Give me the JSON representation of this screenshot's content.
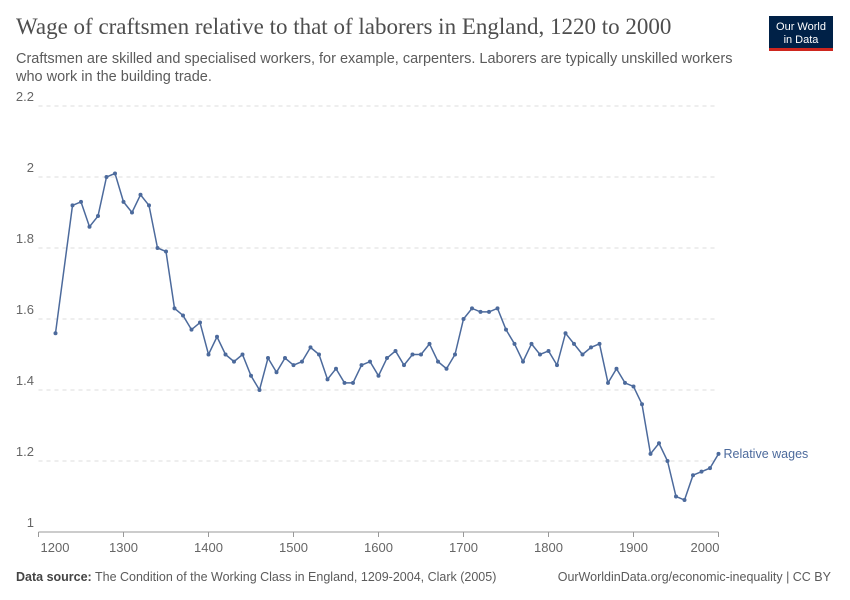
{
  "chart_data": {
    "type": "line",
    "title": "Wage of craftsmen relative to that of laborers in England, 1220 to 2000",
    "subtitle": [
      "Craftsmen are skilled and specialised workers, for example, carpenters. Laborers are typically unskilled workers",
      "who work in the building trade."
    ],
    "x": [
      1220,
      1240,
      1250,
      1260,
      1270,
      1280,
      1290,
      1300,
      1310,
      1320,
      1330,
      1340,
      1350,
      1360,
      1370,
      1380,
      1390,
      1400,
      1410,
      1420,
      1430,
      1440,
      1450,
      1460,
      1470,
      1480,
      1490,
      1500,
      1510,
      1520,
      1530,
      1540,
      1550,
      1560,
      1570,
      1580,
      1590,
      1600,
      1610,
      1620,
      1630,
      1640,
      1650,
      1660,
      1670,
      1680,
      1690,
      1700,
      1710,
      1720,
      1730,
      1740,
      1750,
      1760,
      1770,
      1780,
      1790,
      1800,
      1810,
      1820,
      1830,
      1840,
      1850,
      1860,
      1870,
      1880,
      1890,
      1900,
      1910,
      1920,
      1930,
      1940,
      1950,
      1960,
      1970,
      1980,
      1990,
      2000
    ],
    "series": [
      {
        "name": "Relative wages",
        "color": "#4c6a9c",
        "values": [
          1.56,
          1.92,
          1.93,
          1.86,
          1.89,
          2.0,
          2.01,
          1.93,
          1.9,
          1.95,
          1.92,
          1.8,
          1.79,
          1.63,
          1.61,
          1.57,
          1.59,
          1.5,
          1.55,
          1.5,
          1.48,
          1.5,
          1.44,
          1.4,
          1.49,
          1.45,
          1.49,
          1.47,
          1.48,
          1.52,
          1.5,
          1.43,
          1.46,
          1.42,
          1.42,
          1.47,
          1.48,
          1.44,
          1.49,
          1.51,
          1.47,
          1.5,
          1.5,
          1.53,
          1.48,
          1.46,
          1.5,
          1.6,
          1.63,
          1.62,
          1.62,
          1.63,
          1.57,
          1.53,
          1.48,
          1.53,
          1.5,
          1.51,
          1.47,
          1.56,
          1.53,
          1.5,
          1.52,
          1.53,
          1.42,
          1.46,
          1.42,
          1.41,
          1.36,
          1.22,
          1.25,
          1.2,
          1.1,
          1.09,
          1.16,
          1.17,
          1.18,
          1.22
        ]
      }
    ],
    "xlim": [
      1200,
      2000
    ],
    "xticks": [
      1200,
      1300,
      1400,
      1500,
      1600,
      1700,
      1800,
      1900,
      2000
    ],
    "ylim": [
      1,
      2.2
    ],
    "yticks": [
      1,
      1.2,
      1.4,
      1.6,
      1.8,
      2,
      2.2
    ],
    "grid": true
  },
  "logo": [
    "Our World",
    "in Data"
  ],
  "source": {
    "label": "Data source:",
    "text": "The Condition of the Working Class in England, 1209-2004, Clark (2005)"
  },
  "credit": "OurWorldinData.org/economic-inequality | CC BY"
}
